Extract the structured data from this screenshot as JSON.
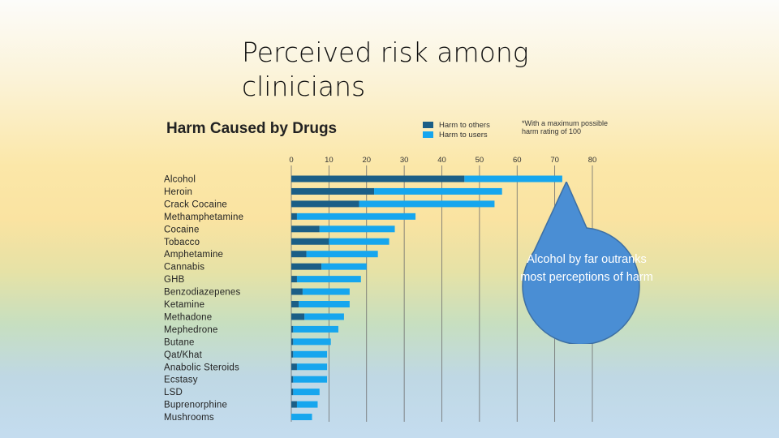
{
  "slide": {
    "title": "Perceived risk among clinicians",
    "callout": "Alcohol by far outranks most perceptions of harm"
  },
  "colors": {
    "others": "#1b5e86",
    "users": "#16a6ee",
    "callout": "#4a8ed4"
  },
  "chart_data": {
    "type": "bar",
    "orientation": "horizontal",
    "stacked": true,
    "title": "Harm Caused by Drugs",
    "footnote": "*With a maximum possible harm rating of 100",
    "legend_position": "top-right",
    "xlim": [
      0,
      80
    ],
    "xticks": [
      "0",
      "10",
      "20",
      "30",
      "40",
      "50",
      "60",
      "70",
      "80"
    ],
    "grid": true,
    "categories": [
      "Alcohol",
      "Heroin",
      "Crack Cocaine",
      "Methamphetamine",
      "Cocaine",
      "Tobacco",
      "Amphetamine",
      "Cannabis",
      "GHB",
      "Benzodiazepenes",
      "Ketamine",
      "Methadone",
      "Mephedrone",
      "Butane",
      "Qat/Khat",
      "Anabolic Steroids",
      "Ecstasy",
      "LSD",
      "Buprenorphine",
      "Mushrooms"
    ],
    "series": [
      {
        "name": "Harm to others",
        "values": [
          46,
          22,
          18,
          1.5,
          7.5,
          10,
          4,
          8,
          1.5,
          3,
          2,
          3.5,
          0.5,
          0.5,
          0.5,
          1.5,
          0.5,
          0.5,
          1.5,
          0
        ]
      },
      {
        "name": "Harm to users",
        "values": [
          26,
          34,
          36,
          31.5,
          20,
          16,
          19,
          12,
          17,
          12.5,
          13.5,
          10.5,
          12,
          10,
          9,
          8,
          9,
          7,
          5.5,
          5.5
        ]
      }
    ]
  }
}
